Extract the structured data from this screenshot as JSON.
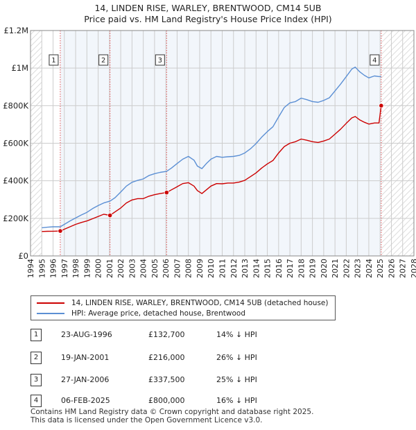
{
  "header": {
    "title": "14, LINDEN RISE, WARLEY, BRENTWOOD, CM14 5UB",
    "subtitle": "Price paid vs. HM Land Registry's House Price Index (HPI)"
  },
  "chart_data": {
    "type": "line",
    "title": "14, LINDEN RISE, WARLEY, BRENTWOOD, CM14 5UB",
    "subtitle": "Price paid vs. HM Land Registry's House Price Index (HPI)",
    "xlim": [
      1994,
      2028
    ],
    "ylim": [
      0,
      1200000
    ],
    "y_ticks": [
      0,
      200000,
      400000,
      600000,
      800000,
      1000000,
      1200000
    ],
    "y_tick_labels": [
      "£0",
      "£200K",
      "£400K",
      "£600K",
      "£800K",
      "£1M",
      "£1.2M"
    ],
    "x_ticks": [
      1994,
      1995,
      1996,
      1997,
      1998,
      1999,
      2000,
      2001,
      2002,
      2003,
      2004,
      2005,
      2006,
      2007,
      2008,
      2009,
      2010,
      2011,
      2012,
      2013,
      2014,
      2015,
      2016,
      2017,
      2018,
      2019,
      2020,
      2021,
      2022,
      2023,
      2024,
      2025,
      2026,
      2027,
      2028
    ],
    "x_tick_labels": [
      "1994",
      "1995",
      "1996",
      "1997",
      "1998",
      "1999",
      "2000",
      "2001",
      "2002",
      "2003",
      "2004",
      "2005",
      "2006",
      "2007",
      "2008",
      "2009",
      "2010",
      "2011",
      "2012",
      "2013",
      "2014",
      "2015",
      "2016",
      "2017",
      "2018",
      "2019",
      "2020",
      "2021",
      "2022",
      "2023",
      "2024",
      "2025",
      "2026",
      "2027",
      "2028"
    ],
    "grid": true,
    "hatched_ranges": [
      [
        1994,
        1995.0
      ],
      [
        2025.1,
        2028
      ]
    ],
    "series": [
      {
        "name": "14, LINDEN RISE, WARLEY, BRENTWOOD, CM14 5UB (detached house)",
        "color": "#cc0000",
        "points": [
          [
            1995.0,
            130000
          ],
          [
            1995.5,
            131000
          ],
          [
            1996.0,
            131500
          ],
          [
            1996.64,
            132700
          ],
          [
            1997.0,
            142000
          ],
          [
            1997.5,
            155000
          ],
          [
            1998.0,
            168000
          ],
          [
            1998.5,
            178000
          ],
          [
            1999.0,
            186000
          ],
          [
            1999.5,
            198000
          ],
          [
            2000.0,
            210000
          ],
          [
            2000.5,
            222000
          ],
          [
            2001.05,
            216000
          ],
          [
            2001.5,
            235000
          ],
          [
            2002.0,
            255000
          ],
          [
            2002.5,
            282000
          ],
          [
            2003.0,
            298000
          ],
          [
            2003.5,
            305000
          ],
          [
            2004.0,
            305000
          ],
          [
            2004.5,
            318000
          ],
          [
            2005.0,
            326000
          ],
          [
            2005.5,
            332000
          ],
          [
            2006.07,
            337500
          ],
          [
            2006.5,
            352000
          ],
          [
            2007.0,
            368000
          ],
          [
            2007.5,
            385000
          ],
          [
            2008.0,
            390000
          ],
          [
            2008.5,
            372000
          ],
          [
            2008.8,
            348000
          ],
          [
            2009.2,
            332000
          ],
          [
            2009.6,
            352000
          ],
          [
            2010.0,
            372000
          ],
          [
            2010.5,
            385000
          ],
          [
            2011.0,
            384000
          ],
          [
            2011.5,
            388000
          ],
          [
            2012.0,
            388000
          ],
          [
            2012.5,
            393000
          ],
          [
            2013.0,
            402000
          ],
          [
            2013.5,
            422000
          ],
          [
            2014.0,
            442000
          ],
          [
            2014.5,
            468000
          ],
          [
            2015.0,
            490000
          ],
          [
            2015.5,
            508000
          ],
          [
            2016.0,
            548000
          ],
          [
            2016.5,
            582000
          ],
          [
            2017.0,
            600000
          ],
          [
            2017.5,
            608000
          ],
          [
            2018.0,
            622000
          ],
          [
            2018.5,
            616000
          ],
          [
            2019.0,
            608000
          ],
          [
            2019.5,
            604000
          ],
          [
            2020.0,
            612000
          ],
          [
            2020.5,
            622000
          ],
          [
            2021.0,
            648000
          ],
          [
            2021.5,
            675000
          ],
          [
            2022.0,
            706000
          ],
          [
            2022.5,
            735000
          ],
          [
            2022.8,
            742000
          ],
          [
            2023.2,
            724000
          ],
          [
            2023.6,
            712000
          ],
          [
            2024.0,
            702000
          ],
          [
            2024.5,
            708000
          ],
          [
            2024.9,
            708000
          ],
          [
            2025.1,
            800000
          ]
        ]
      },
      {
        "name": "HPI: Average price, detached house, Brentwood",
        "color": "#5b8fd4",
        "points": [
          [
            1995.0,
            150000
          ],
          [
            1995.5,
            153000
          ],
          [
            1996.0,
            155000
          ],
          [
            1996.64,
            155000
          ],
          [
            1997.0,
            168000
          ],
          [
            1997.5,
            186000
          ],
          [
            1998.0,
            202000
          ],
          [
            1998.5,
            218000
          ],
          [
            1999.0,
            232000
          ],
          [
            1999.5,
            252000
          ],
          [
            2000.0,
            268000
          ],
          [
            2000.5,
            282000
          ],
          [
            2001.05,
            292000
          ],
          [
            2001.5,
            310000
          ],
          [
            2002.0,
            340000
          ],
          [
            2002.5,
            372000
          ],
          [
            2003.0,
            392000
          ],
          [
            2003.5,
            402000
          ],
          [
            2004.0,
            410000
          ],
          [
            2004.5,
            428000
          ],
          [
            2005.0,
            438000
          ],
          [
            2005.5,
            445000
          ],
          [
            2006.07,
            450000
          ],
          [
            2006.5,
            468000
          ],
          [
            2007.0,
            492000
          ],
          [
            2007.5,
            515000
          ],
          [
            2008.0,
            530000
          ],
          [
            2008.5,
            510000
          ],
          [
            2008.8,
            478000
          ],
          [
            2009.2,
            465000
          ],
          [
            2009.6,
            492000
          ],
          [
            2010.0,
            515000
          ],
          [
            2010.5,
            530000
          ],
          [
            2011.0,
            525000
          ],
          [
            2011.5,
            528000
          ],
          [
            2012.0,
            530000
          ],
          [
            2012.5,
            535000
          ],
          [
            2013.0,
            548000
          ],
          [
            2013.5,
            570000
          ],
          [
            2014.0,
            598000
          ],
          [
            2014.5,
            632000
          ],
          [
            2015.0,
            662000
          ],
          [
            2015.5,
            688000
          ],
          [
            2016.0,
            740000
          ],
          [
            2016.5,
            790000
          ],
          [
            2017.0,
            815000
          ],
          [
            2017.5,
            822000
          ],
          [
            2018.0,
            840000
          ],
          [
            2018.5,
            832000
          ],
          [
            2019.0,
            822000
          ],
          [
            2019.5,
            818000
          ],
          [
            2020.0,
            828000
          ],
          [
            2020.5,
            842000
          ],
          [
            2021.0,
            878000
          ],
          [
            2021.5,
            915000
          ],
          [
            2022.0,
            955000
          ],
          [
            2022.5,
            995000
          ],
          [
            2022.8,
            1005000
          ],
          [
            2023.2,
            980000
          ],
          [
            2023.6,
            962000
          ],
          [
            2024.0,
            948000
          ],
          [
            2024.5,
            958000
          ],
          [
            2024.9,
            955000
          ],
          [
            2025.1,
            955000
          ]
        ]
      }
    ],
    "sales": [
      {
        "id": "1",
        "x": 1996.64,
        "price": 132700
      },
      {
        "id": "2",
        "x": 2001.05,
        "price": 216000
      },
      {
        "id": "3",
        "x": 2006.07,
        "price": 337500
      },
      {
        "id": "4",
        "x": 2025.1,
        "price": 800000
      }
    ]
  },
  "legend": {
    "property_label": "14, LINDEN RISE, WARLEY, BRENTWOOD, CM14 5UB (detached house)",
    "hpi_label": "HPI: Average price, detached house, Brentwood"
  },
  "transactions": [
    {
      "num": "1",
      "date": "23-AUG-1996",
      "price": "£132,700",
      "hpi": "14% ↓ HPI"
    },
    {
      "num": "2",
      "date": "19-JAN-2001",
      "price": "£216,000",
      "hpi": "26% ↓ HPI"
    },
    {
      "num": "3",
      "date": "27-JAN-2006",
      "price": "£337,500",
      "hpi": "25% ↓ HPI"
    },
    {
      "num": "4",
      "date": "06-FEB-2025",
      "price": "£800,000",
      "hpi": "16% ↓ HPI"
    }
  ],
  "footer": {
    "line1": "Contains HM Land Registry data © Crown copyright and database right 2025.",
    "line2": "This data is licensed under the Open Government Licence v3.0."
  }
}
